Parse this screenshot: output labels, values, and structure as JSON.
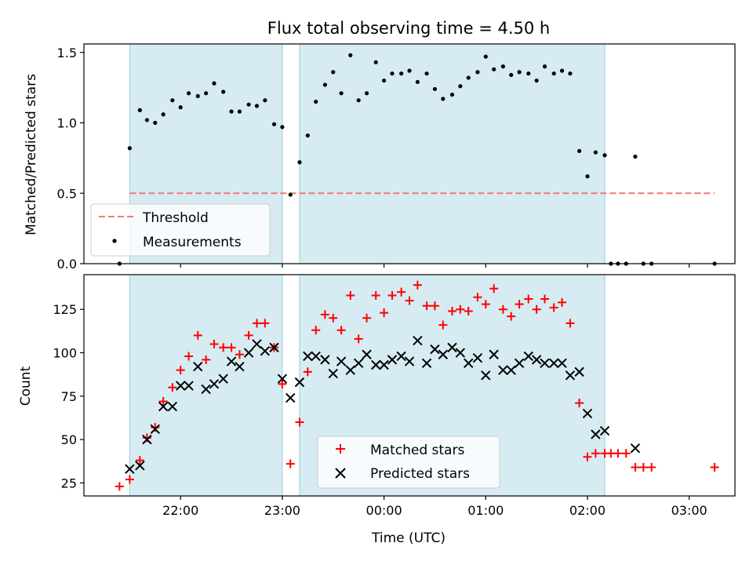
{
  "figure": {
    "title": "Flux total observing time = 4.50 h",
    "xlabel": "Time (UTC)"
  },
  "chart_data": [
    {
      "type": "scatter",
      "panel": "top",
      "ylabel": "Matched/Predicted stars",
      "ylim": [
        0,
        1.56
      ],
      "yticks": [
        0.0,
        0.5,
        1.0,
        1.5
      ],
      "ytick_labels": [
        "0.0",
        "0.5",
        "1.0",
        "1.5"
      ],
      "xlim": [
        21.05,
        3.45
      ],
      "xtick_labels": [
        "22:00",
        "23:00",
        "00:00",
        "01:00",
        "02:00",
        "03:00"
      ],
      "xtick_hours": [
        22,
        23,
        24,
        25,
        26,
        27
      ],
      "show_xtick_labels": false,
      "threshold": {
        "name": "Threshold",
        "value": 0.5,
        "x_range": [
          21.5,
          27.25
        ],
        "color": "#f07878"
      },
      "shaded_intervals": [
        [
          21.5,
          23.0
        ],
        [
          23.17,
          26.17
        ]
      ],
      "legend": {
        "placement": "lower-left",
        "entries": [
          "Threshold",
          "Measurements"
        ]
      },
      "series": [
        {
          "name": "Measurements",
          "marker": "dot",
          "color": "#000000",
          "x": [
            21.4,
            21.5,
            21.6,
            21.67,
            21.75,
            21.83,
            21.92,
            22.0,
            22.08,
            22.17,
            22.25,
            22.33,
            22.42,
            22.5,
            22.58,
            22.67,
            22.75,
            22.83,
            22.92,
            23.0,
            23.08,
            23.17,
            23.25,
            23.33,
            23.42,
            23.5,
            23.58,
            23.67,
            23.75,
            23.83,
            23.92,
            24.0,
            24.08,
            24.17,
            24.25,
            24.33,
            24.42,
            24.5,
            24.58,
            24.67,
            24.75,
            24.83,
            24.92,
            25.0,
            25.08,
            25.17,
            25.25,
            25.33,
            25.42,
            25.5,
            25.58,
            25.67,
            25.75,
            25.83,
            25.92,
            26.0,
            26.08,
            26.17,
            26.23,
            26.3,
            26.38,
            26.47,
            26.55,
            26.63,
            27.25
          ],
          "y": [
            0.0,
            0.82,
            1.09,
            1.02,
            1.0,
            1.06,
            1.16,
            1.11,
            1.21,
            1.19,
            1.21,
            1.28,
            1.22,
            1.08,
            1.08,
            1.13,
            1.12,
            1.16,
            0.99,
            0.97,
            0.49,
            0.72,
            0.91,
            1.15,
            1.27,
            1.36,
            1.21,
            1.48,
            1.16,
            1.21,
            1.43,
            1.3,
            1.35,
            1.35,
            1.37,
            1.29,
            1.35,
            1.24,
            1.17,
            1.2,
            1.26,
            1.32,
            1.36,
            1.47,
            1.38,
            1.4,
            1.34,
            1.36,
            1.35,
            1.3,
            1.4,
            1.35,
            1.37,
            1.35,
            0.8,
            0.62,
            0.79,
            0.77,
            0.0,
            0.0,
            0.0,
            0.76,
            0.0,
            0.0,
            0.0
          ]
        }
      ]
    },
    {
      "type": "scatter",
      "panel": "bottom",
      "ylabel": "Count",
      "xlabel": "Time (UTC)",
      "ylim": [
        17.5,
        145
      ],
      "yticks": [
        25,
        50,
        75,
        100,
        125
      ],
      "ytick_labels": [
        "25",
        "50",
        "75",
        "100",
        "125"
      ],
      "xlim": [
        21.05,
        3.45
      ],
      "xtick_labels": [
        "22:00",
        "23:00",
        "00:00",
        "01:00",
        "02:00",
        "03:00"
      ],
      "xtick_hours": [
        22,
        23,
        24,
        25,
        26,
        27
      ],
      "shaded_intervals": [
        [
          21.5,
          23.0
        ],
        [
          23.17,
          26.17
        ]
      ],
      "legend": {
        "placement": "lower-center",
        "entries": [
          "Matched stars",
          "Predicted stars"
        ]
      },
      "series": [
        {
          "name": "Matched stars",
          "marker": "plus",
          "color": "#ff0000",
          "x": [
            21.4,
            21.5,
            21.6,
            21.67,
            21.75,
            21.83,
            21.92,
            22.0,
            22.08,
            22.17,
            22.25,
            22.33,
            22.42,
            22.5,
            22.58,
            22.67,
            22.75,
            22.83,
            22.92,
            23.0,
            23.08,
            23.17,
            23.25,
            23.33,
            23.42,
            23.5,
            23.58,
            23.67,
            23.75,
            23.83,
            23.92,
            24.0,
            24.08,
            24.17,
            24.25,
            24.33,
            24.42,
            24.5,
            24.58,
            24.67,
            24.75,
            24.83,
            24.92,
            25.0,
            25.08,
            25.17,
            25.25,
            25.33,
            25.42,
            25.5,
            25.58,
            25.67,
            25.75,
            25.83,
            25.92,
            26.0,
            26.08,
            26.17,
            26.23,
            26.3,
            26.38,
            26.47,
            26.55,
            26.63,
            27.25
          ],
          "y": [
            23,
            27,
            38,
            51,
            57,
            72,
            80,
            90,
            98,
            110,
            96,
            105,
            103,
            103,
            99,
            110,
            117,
            117,
            103,
            82,
            36,
            60,
            89,
            113,
            122,
            120,
            113,
            133,
            108,
            120,
            133,
            123,
            133,
            135,
            130,
            139,
            127,
            127,
            116,
            124,
            125,
            124,
            132,
            128,
            137,
            125,
            121,
            128,
            131,
            125,
            131,
            126,
            129,
            117,
            71,
            40,
            42,
            42,
            42,
            42,
            42,
            34,
            34,
            34,
            34
          ]
        },
        {
          "name": "Predicted stars",
          "marker": "x",
          "color": "#000000",
          "x": [
            21.5,
            21.6,
            21.67,
            21.75,
            21.83,
            21.92,
            22.0,
            22.08,
            22.17,
            22.25,
            22.33,
            22.42,
            22.5,
            22.58,
            22.67,
            22.75,
            22.83,
            22.92,
            23.0,
            23.08,
            23.17,
            23.25,
            23.33,
            23.42,
            23.5,
            23.58,
            23.67,
            23.75,
            23.83,
            23.92,
            24.0,
            24.08,
            24.17,
            24.25,
            24.33,
            24.42,
            24.5,
            24.58,
            24.67,
            24.75,
            24.83,
            24.92,
            25.0,
            25.08,
            25.17,
            25.25,
            25.33,
            25.42,
            25.5,
            25.58,
            25.67,
            25.75,
            25.83,
            25.92,
            26.0,
            26.08,
            26.17,
            26.47
          ],
          "y": [
            33,
            35,
            50,
            56,
            69,
            69,
            81,
            81,
            92,
            79,
            82,
            85,
            95,
            92,
            100,
            105,
            101,
            103,
            85,
            74,
            83,
            98,
            98,
            96,
            88,
            95,
            90,
            94,
            99,
            93,
            93,
            96,
            98,
            95,
            107,
            94,
            102,
            99,
            103,
            100,
            94,
            97,
            87,
            99,
            90,
            90,
            94,
            98,
            96,
            94,
            94,
            94,
            87,
            89,
            65,
            53,
            55,
            45
          ]
        }
      ]
    }
  ]
}
